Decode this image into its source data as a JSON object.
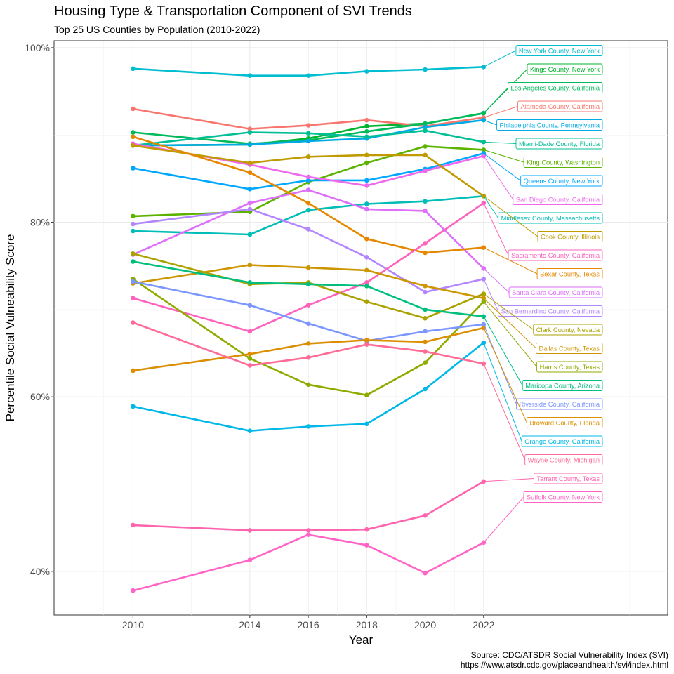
{
  "chart_data": {
    "type": "line",
    "title": "Housing Type & Transportation Component of SVI Trends",
    "subtitle": "Top 25 US Counties by Population (2010-2022)",
    "xlabel": "Year",
    "ylabel": "Percentile Social Vulneability Score",
    "caption": [
      "Source: CDC/ATSDR Social Vulnerability Index (SVI)",
      "https://www.atsdr.cdc.gov/placeandhealth/svi/index.html"
    ],
    "x": [
      2010,
      2014,
      2016,
      2018,
      2020,
      2022
    ],
    "x_ticks": [
      2010,
      2014,
      2016,
      2018,
      2020,
      2022
    ],
    "xlim": [
      2007.3,
      2028.3
    ],
    "ylim": [
      35,
      100.8
    ],
    "y_ticks": [
      40,
      60,
      80,
      100
    ],
    "y_tick_labels": [
      "40%",
      "60%",
      "80%",
      "100%"
    ],
    "grid": true,
    "legend": "direct labels at right",
    "series": [
      {
        "name": "New York County, New York",
        "color": "#00BDD0",
        "values": [
          97.6,
          96.8,
          96.8,
          97.3,
          97.5,
          97.8
        ]
      },
      {
        "name": "Kings County, New York",
        "color": "#00B42E",
        "values": [
          88.8,
          88.9,
          89.6,
          91.0,
          91.3,
          92.5
        ]
      },
      {
        "name": "Alameda County, California",
        "color": "#F8766D",
        "values": [
          93.0,
          90.7,
          91.1,
          91.7,
          91.0,
          92.0
        ]
      },
      {
        "name": "Los Angeles County, California",
        "color": "#00BA5C",
        "values": [
          90.3,
          89.0,
          89.4,
          90.4,
          91.3,
          92.5
        ]
      },
      {
        "name": "Philadelphia County, Pennsylvania",
        "color": "#00A9E5",
        "values": [
          88.8,
          88.9,
          89.3,
          89.6,
          90.9,
          91.7
        ]
      },
      {
        "name": "Miami-Dade County, Florida",
        "color": "#00BE95",
        "values": [
          88.8,
          90.3,
          90.2,
          89.8,
          90.5,
          89.2
        ]
      },
      {
        "name": "King County, Washington",
        "color": "#5BB300",
        "values": [
          80.7,
          81.2,
          84.6,
          86.8,
          88.7,
          88.3
        ]
      },
      {
        "name": "Queens County, New York",
        "color": "#00A7FF",
        "values": [
          86.2,
          83.8,
          84.8,
          84.8,
          86.1,
          87.9
        ]
      },
      {
        "name": "San Diego County, California",
        "color": "#EE67EC",
        "values": [
          89.0,
          86.6,
          85.2,
          84.2,
          85.9,
          87.6
        ]
      },
      {
        "name": "Middlesex County, Massachusetts",
        "color": "#00BDB7",
        "values": [
          79.0,
          78.6,
          81.4,
          82.1,
          82.4,
          83.0
        ]
      },
      {
        "name": "Cook County, Illinois",
        "color": "#C09B00",
        "values": [
          88.8,
          86.8,
          87.5,
          87.7,
          87.7,
          83.0
        ]
      },
      {
        "name": "Santa Clara County, California",
        "color": "#DD6FFB",
        "values": [
          76.3,
          82.2,
          83.7,
          81.5,
          81.3,
          74.7
        ]
      },
      {
        "name": "Bexar County, Texas",
        "color": "#E58800",
        "values": [
          89.8,
          85.7,
          82.2,
          78.1,
          76.5,
          77.1
        ]
      },
      {
        "name": "San Bernardino County, California",
        "color": "#B386FF",
        "values": [
          79.8,
          81.5,
          79.2,
          76.0,
          72.0,
          73.5
        ]
      },
      {
        "name": "Sacramento County, California",
        "color": "#FF62BC",
        "values": [
          71.3,
          67.5,
          70.5,
          73.1,
          77.6,
          82.2
        ]
      },
      {
        "name": "Dallas County, Texas",
        "color": "#CD9600",
        "values": [
          73.0,
          75.1,
          74.8,
          74.5,
          72.7,
          71.3
        ]
      },
      {
        "name": "Clark County, Nevada",
        "color": "#AAA200",
        "values": [
          76.4,
          72.9,
          73.1,
          70.9,
          69.0,
          71.8
        ]
      },
      {
        "name": "Harris County, Texas",
        "color": "#8EAB00",
        "values": [
          73.5,
          64.4,
          61.4,
          60.2,
          63.9,
          70.9
        ]
      },
      {
        "name": "Maricopa County, Arizona",
        "color": "#00BF7D",
        "values": [
          75.5,
          73.1,
          72.9,
          72.7,
          70.0,
          69.2
        ]
      },
      {
        "name": "Riverside County, California",
        "color": "#7C96FF",
        "values": [
          73.2,
          70.5,
          68.4,
          66.4,
          67.5,
          68.3
        ]
      },
      {
        "name": "Broward County, Florida",
        "color": "#DB8E00",
        "values": [
          63.0,
          64.9,
          66.1,
          66.5,
          66.3,
          67.9
        ]
      },
      {
        "name": "Orange County, California",
        "color": "#00B8E7",
        "values": [
          58.9,
          56.1,
          56.6,
          56.9,
          60.9,
          66.2
        ]
      },
      {
        "name": "Wayne County, Michigan",
        "color": "#FF6B96",
        "values": [
          68.5,
          63.6,
          64.5,
          66.0,
          65.2,
          63.8
        ]
      },
      {
        "name": "Tarrant County, Texas",
        "color": "#FF65AF",
        "values": [
          45.3,
          44.7,
          44.7,
          44.8,
          46.4,
          50.3
        ]
      },
      {
        "name": "Suffolk County, New York",
        "color": "#FF64C6",
        "values": [
          37.8,
          41.3,
          44.2,
          43.0,
          39.8,
          43.3
        ]
      }
    ]
  }
}
